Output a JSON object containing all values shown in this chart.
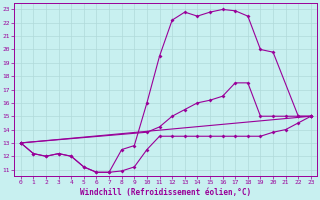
{
  "xlabel": "Windchill (Refroidissement éolien,°C)",
  "bg_color": "#c8f0f0",
  "line_color": "#990099",
  "marker": "D",
  "markersize": 2.0,
  "linewidth": 0.8,
  "xlim": [
    -0.5,
    23.5
  ],
  "ylim": [
    10.5,
    23.5
  ],
  "xticks": [
    0,
    1,
    2,
    3,
    4,
    5,
    6,
    7,
    8,
    9,
    10,
    11,
    12,
    13,
    14,
    15,
    16,
    17,
    18,
    19,
    20,
    21,
    22,
    23
  ],
  "yticks": [
    11,
    12,
    13,
    14,
    15,
    16,
    17,
    18,
    19,
    20,
    21,
    22,
    23
  ],
  "grid_color": "#b0dada",
  "curve1_x": [
    0,
    1,
    2,
    3,
    4,
    5,
    6,
    7,
    8,
    9,
    10,
    11,
    12,
    13,
    14,
    15,
    16,
    17,
    18,
    19,
    20,
    21,
    22,
    23
  ],
  "curve1_y": [
    13,
    12.2,
    12.0,
    12.2,
    12.0,
    11.2,
    10.8,
    10.8,
    10.9,
    11.2,
    12.5,
    13.5,
    13.5,
    13.5,
    13.5,
    13.5,
    13.5,
    13.5,
    13.5,
    13.5,
    13.8,
    14.0,
    14.5,
    15.0
  ],
  "curve2_x": [
    0,
    1,
    2,
    3,
    4,
    5,
    6,
    7,
    8,
    9,
    10,
    11,
    12,
    13,
    14,
    15,
    16,
    17,
    18,
    19,
    20,
    22,
    23
  ],
  "curve2_y": [
    13,
    12.2,
    12.0,
    12.2,
    12.0,
    11.2,
    10.8,
    10.8,
    12.5,
    12.8,
    16.0,
    19.5,
    22.2,
    22.8,
    22.5,
    22.8,
    23.0,
    22.9,
    22.5,
    20.0,
    19.8,
    15.0,
    15.0
  ],
  "curve3_x": [
    0,
    10,
    11,
    12,
    13,
    14,
    15,
    16,
    17,
    18,
    19,
    20,
    21,
    22,
    23
  ],
  "curve3_y": [
    13,
    13.8,
    14.2,
    15.0,
    15.5,
    16.0,
    16.2,
    16.5,
    17.5,
    17.5,
    15.0,
    15.0,
    15.0,
    15.0,
    15.0
  ],
  "curve4_x": [
    0,
    23
  ],
  "curve4_y": [
    13,
    15.0
  ]
}
